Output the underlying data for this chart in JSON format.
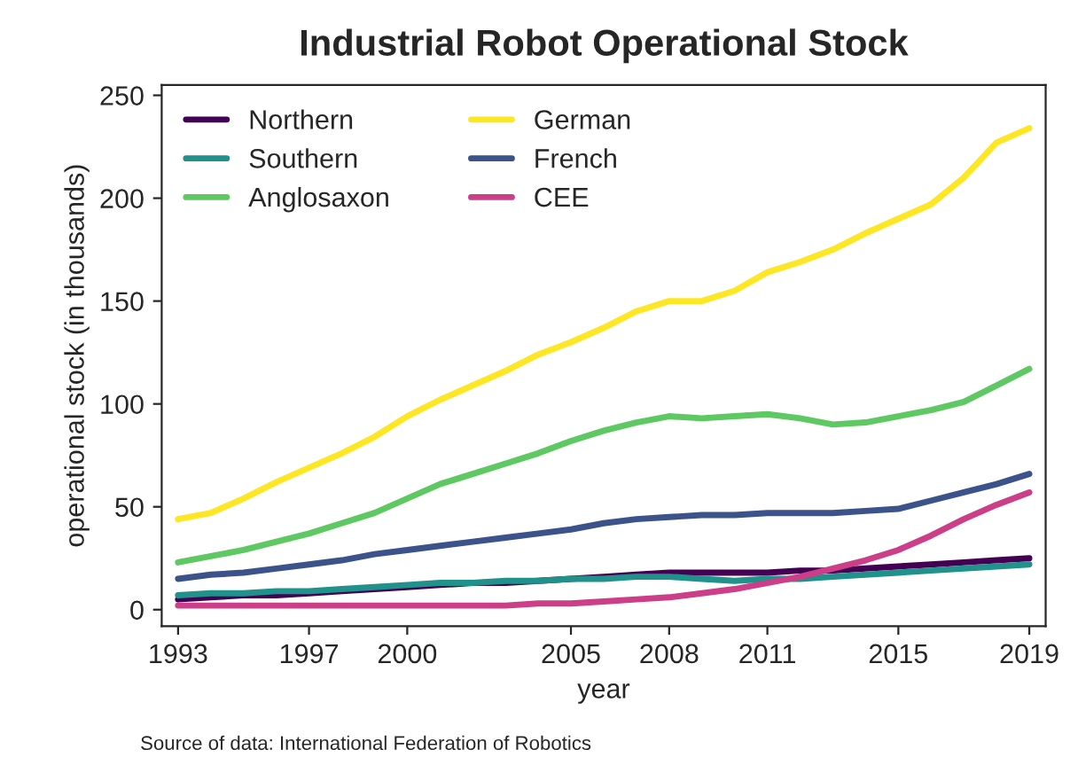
{
  "chart_data": {
    "type": "line",
    "title": "Industrial Robot Operational Stock",
    "xlabel": "year",
    "ylabel": "operational stock (in thousands)",
    "x": [
      1993,
      1994,
      1995,
      1996,
      1997,
      1998,
      1999,
      2000,
      2001,
      2002,
      2003,
      2004,
      2005,
      2006,
      2007,
      2008,
      2009,
      2010,
      2011,
      2012,
      2013,
      2014,
      2015,
      2016,
      2017,
      2018,
      2019
    ],
    "series": [
      {
        "name": "Northern",
        "color": "#440154",
        "values": [
          5,
          6,
          7,
          7,
          8,
          9,
          10,
          11,
          12,
          13,
          13,
          14,
          15,
          16,
          17,
          18,
          18,
          18,
          18,
          19,
          19,
          20,
          21,
          22,
          23,
          24,
          25
        ]
      },
      {
        "name": "Southern",
        "color": "#21918c",
        "values": [
          7,
          8,
          8,
          9,
          9,
          10,
          11,
          12,
          13,
          13,
          14,
          14,
          15,
          15,
          16,
          16,
          15,
          14,
          15,
          15,
          16,
          17,
          18,
          19,
          20,
          21,
          22
        ]
      },
      {
        "name": "Anglosaxon",
        "color": "#5ec962",
        "values": [
          23,
          26,
          29,
          33,
          37,
          42,
          47,
          54,
          61,
          66,
          71,
          76,
          82,
          87,
          91,
          94,
          93,
          94,
          95,
          93,
          90,
          91,
          94,
          97,
          101,
          109,
          117
        ]
      },
      {
        "name": "German",
        "color": "#fde725",
        "values": [
          44,
          47,
          54,
          62,
          69,
          76,
          84,
          94,
          102,
          109,
          116,
          124,
          130,
          137,
          145,
          150,
          150,
          155,
          164,
          169,
          175,
          183,
          190,
          197,
          210,
          227,
          234
        ]
      },
      {
        "name": "French",
        "color": "#3b528b",
        "values": [
          15,
          17,
          18,
          20,
          22,
          24,
          27,
          29,
          31,
          33,
          35,
          37,
          39,
          42,
          44,
          45,
          46,
          46,
          47,
          47,
          47,
          48,
          49,
          53,
          57,
          61,
          66
        ]
      },
      {
        "name": "CEE",
        "color": "#cc3f88",
        "values": [
          2,
          2,
          2,
          2,
          2,
          2,
          2,
          2,
          2,
          2,
          2,
          3,
          3,
          4,
          5,
          6,
          8,
          10,
          13,
          16,
          20,
          24,
          29,
          36,
          44,
          51,
          57
        ]
      }
    ],
    "xlim": [
      1992.5,
      2019.5
    ],
    "xticks": [
      1993,
      1997,
      2000,
      2005,
      2008,
      2011,
      2015,
      2019
    ],
    "ylim": [
      -8,
      255
    ],
    "yticks": [
      0,
      50,
      100,
      150,
      200,
      250
    ],
    "grid": false,
    "legend": "top left",
    "line_style": "solid",
    "marker": "none",
    "annotations": [
      "Source of data: International Federation of Robotics"
    ]
  }
}
